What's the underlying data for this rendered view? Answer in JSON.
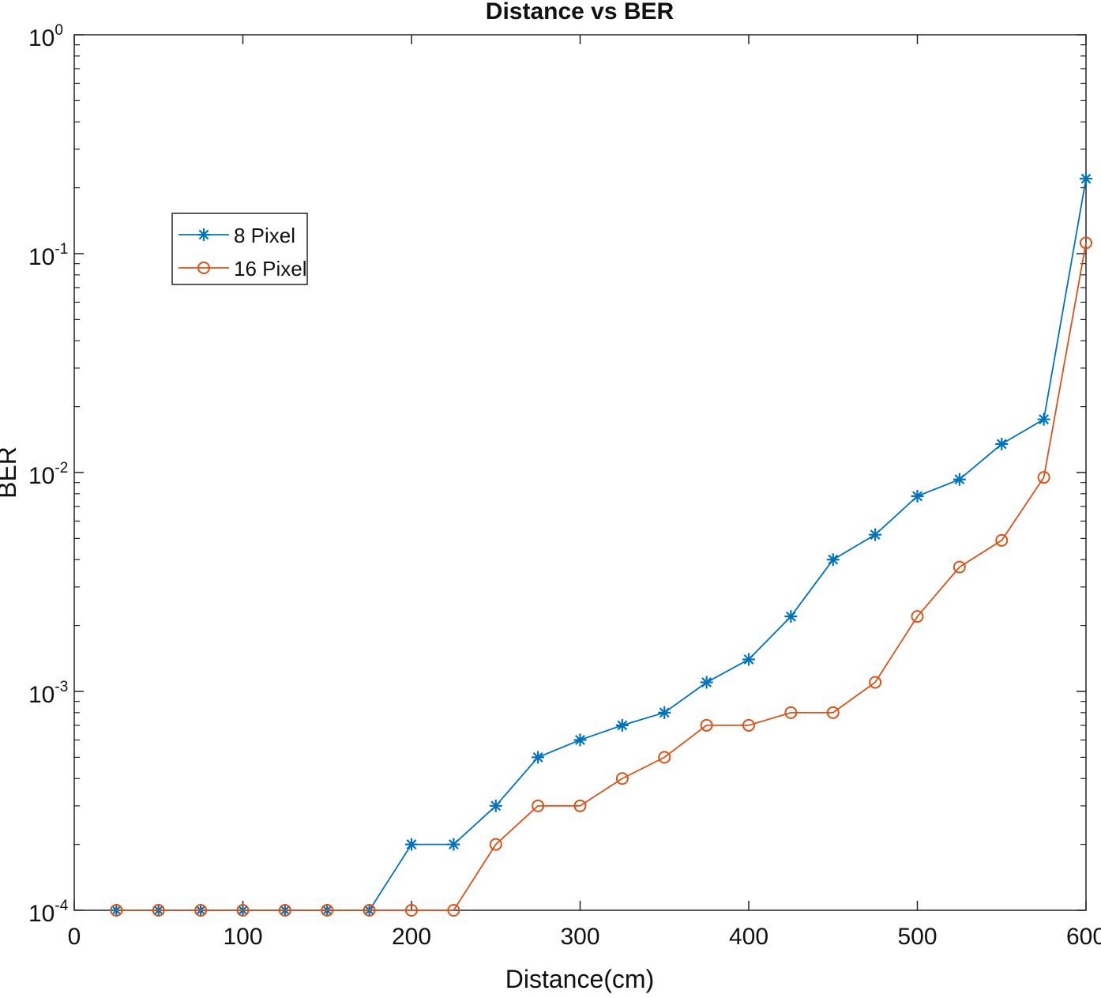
{
  "chart_data": {
    "type": "line",
    "title": "Distance vs BER",
    "xlabel": "Distance(cm)",
    "ylabel": "BER",
    "xlim": [
      0,
      600
    ],
    "ylim": [
      0.0001,
      1
    ],
    "yscale": "log",
    "grid": false,
    "legend_position": "upper-left",
    "xticks": [
      0,
      100,
      200,
      300,
      400,
      500,
      600
    ],
    "xtick_labels": [
      "0",
      "100",
      "200",
      "300",
      "400",
      "500",
      "600"
    ],
    "yticks": [
      0.0001,
      0.001,
      0.01,
      0.1,
      1
    ],
    "ytick_labels": [
      {
        "base": "10",
        "exp": "-4"
      },
      {
        "base": "10",
        "exp": "-3"
      },
      {
        "base": "10",
        "exp": "-2"
      },
      {
        "base": "10",
        "exp": "-1"
      },
      {
        "base": "10",
        "exp": "0"
      }
    ],
    "x": [
      25,
      50,
      75,
      100,
      125,
      150,
      175,
      200,
      225,
      250,
      275,
      300,
      325,
      350,
      375,
      400,
      425,
      450,
      475,
      500,
      525,
      550,
      575,
      600
    ],
    "series": [
      {
        "name": "8 Pixel",
        "color": "#0072BD",
        "marker": "star",
        "values": [
          0.0001,
          0.0001,
          0.0001,
          0.0001,
          0.0001,
          0.0001,
          0.0001,
          0.0002,
          0.0002,
          0.0003,
          0.0005,
          0.0006,
          0.0007,
          0.0008,
          0.0011,
          0.0014,
          0.0022,
          0.004,
          0.0052,
          0.0078,
          0.0093,
          0.0135,
          0.0175,
          0.22
        ]
      },
      {
        "name": "16 Pixel",
        "color": "#D95319",
        "marker": "circle",
        "values": [
          0.0001,
          0.0001,
          0.0001,
          0.0001,
          0.0001,
          0.0001,
          0.0001,
          0.0001,
          0.0001,
          0.0002,
          0.0003,
          0.0003,
          0.0004,
          0.0005,
          0.0007,
          0.0007,
          0.0008,
          0.0008,
          0.0011,
          0.0022,
          0.0037,
          0.0049,
          0.0095,
          0.112
        ]
      }
    ]
  }
}
